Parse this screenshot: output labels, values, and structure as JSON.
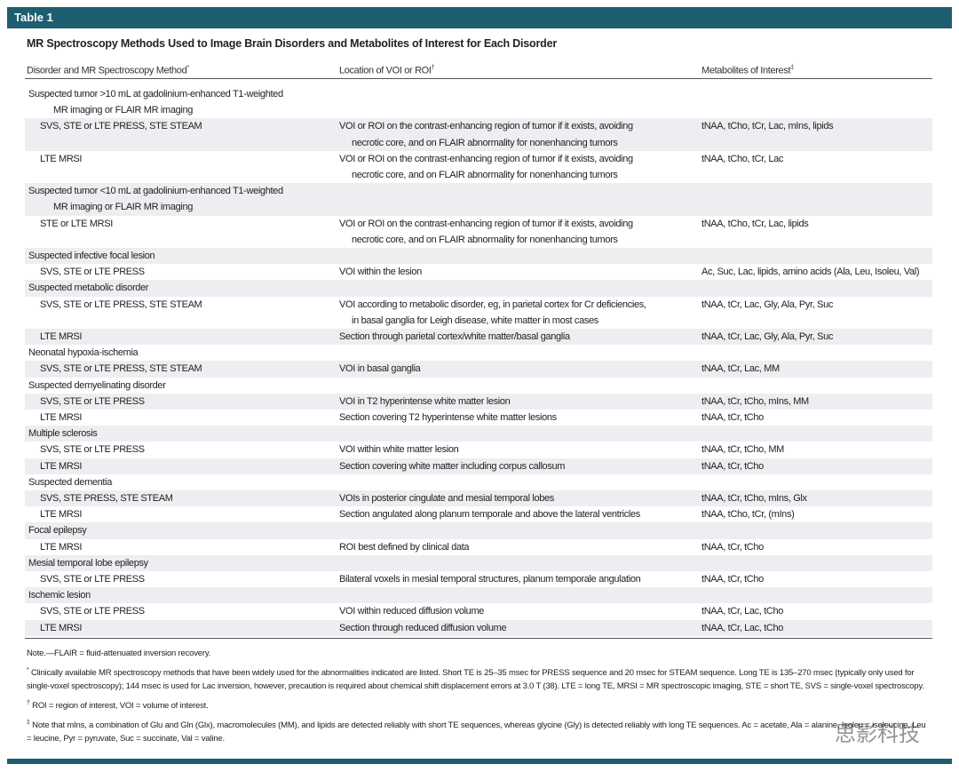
{
  "header": {
    "label": "Table 1",
    "title": "MR Spectroscopy Methods Used to Image Brain Disorders and Metabolites of Interest for Each Disorder"
  },
  "table": {
    "columns": [
      {
        "text": "Disorder and MR Spectroscopy Method",
        "mark": "*"
      },
      {
        "text": "Location of VOI or ROI",
        "mark": "†"
      },
      {
        "text": "Metabolites of Interest",
        "mark": "‡"
      }
    ],
    "rows": [
      {
        "group": [
          "Suspected tumor >10 mL at gadolinium-enhanced T1-weighted",
          "MR imaging or FLAIR MR imaging"
        ]
      },
      {
        "method": [
          "SVS, STE or LTE PRESS, STE STEAM"
        ],
        "location": [
          "VOI or ROI on the contrast-enhancing region of tumor if it exists, avoiding",
          "necrotic core, and on FLAIR abnormality for nonenhancing tumors"
        ],
        "metabolites": [
          "tNAA, tCho, tCr, Lac, mIns, lipids"
        ]
      },
      {
        "method": [
          "LTE MRSI"
        ],
        "location": [
          "VOI or ROI on the contrast-enhancing region of tumor if it exists, avoiding",
          "necrotic core, and on FLAIR abnormality for nonenhancing tumors"
        ],
        "metabolites": [
          "tNAA, tCho, tCr, Lac"
        ]
      },
      {
        "group": [
          "Suspected tumor <10 mL at gadolinium-enhanced T1-weighted",
          "MR imaging or FLAIR MR imaging"
        ]
      },
      {
        "method": [
          "STE or LTE MRSI"
        ],
        "location": [
          "VOI or ROI on the contrast-enhancing region of tumor if it exists, avoiding",
          "necrotic core, and on FLAIR abnormality for nonenhancing tumors"
        ],
        "metabolites": [
          "tNAA, tCho, tCr, Lac, lipids"
        ]
      },
      {
        "group": [
          "Suspected infective focal lesion"
        ]
      },
      {
        "method": [
          "SVS, STE or LTE PRESS"
        ],
        "location": [
          "VOI within the lesion"
        ],
        "metabolites": [
          "Ac, Suc, Lac, lipids, amino acids (Ala, Leu, Isoleu, Val)"
        ]
      },
      {
        "group": [
          "Suspected metabolic disorder"
        ]
      },
      {
        "method": [
          "SVS, STE or LTE PRESS, STE STEAM"
        ],
        "location": [
          "VOI according to metabolic disorder, eg, in parietal cortex for Cr deficiencies,",
          "in basal ganglia for Leigh disease, white matter in most cases"
        ],
        "metabolites": [
          "tNAA, tCr, Lac, Gly, Ala, Pyr, Suc"
        ]
      },
      {
        "method": [
          "LTE MRSI"
        ],
        "location": [
          "Section through parietal cortex/white matter/basal ganglia"
        ],
        "metabolites": [
          "tNAA, tCr, Lac, Gly, Ala, Pyr, Suc"
        ]
      },
      {
        "group": [
          "Neonatal hypoxia-ischemia"
        ]
      },
      {
        "method": [
          "SVS, STE or LTE PRESS, STE STEAM"
        ],
        "location": [
          "VOI in basal ganglia"
        ],
        "metabolites": [
          "tNAA, tCr, Lac, MM"
        ]
      },
      {
        "group": [
          "Suspected demyelinating disorder"
        ]
      },
      {
        "method": [
          "SVS, STE or LTE PRESS"
        ],
        "location": [
          "VOI in T2 hyperintense white matter lesion"
        ],
        "metabolites": [
          "tNAA, tCr, tCho, mIns, MM"
        ]
      },
      {
        "method": [
          "LTE MRSI"
        ],
        "location": [
          "Section covering T2 hyperintense white matter lesions"
        ],
        "metabolites": [
          "tNAA, tCr, tCho"
        ]
      },
      {
        "group": [
          "Multiple sclerosis"
        ]
      },
      {
        "method": [
          "SVS, STE or LTE PRESS"
        ],
        "location": [
          "VOI within white matter lesion"
        ],
        "metabolites": [
          "tNAA, tCr, tCho, MM"
        ]
      },
      {
        "method": [
          "LTE MRSI"
        ],
        "location": [
          "Section covering white matter including corpus callosum"
        ],
        "metabolites": [
          "tNAA, tCr, tCho"
        ]
      },
      {
        "group": [
          "Suspected dementia"
        ]
      },
      {
        "method": [
          "SVS, STE PRESS, STE STEAM"
        ],
        "location": [
          "VOIs in posterior cingulate and mesial temporal lobes"
        ],
        "metabolites": [
          "tNAA, tCr, tCho, mIns, Glx"
        ]
      },
      {
        "method": [
          "LTE MRSI"
        ],
        "location": [
          "Section angulated along planum temporale and above the lateral ventricles"
        ],
        "metabolites": [
          "tNAA, tCho, tCr, (mIns)"
        ]
      },
      {
        "group": [
          "Focal epilepsy"
        ]
      },
      {
        "method": [
          "LTE MRSI"
        ],
        "location": [
          "ROI best defined by clinical data"
        ],
        "metabolites": [
          "tNAA, tCr, tCho"
        ]
      },
      {
        "group": [
          "Mesial temporal lobe epilepsy"
        ]
      },
      {
        "method": [
          "SVS, STE or LTE PRESS"
        ],
        "location": [
          "Bilateral voxels in mesial temporal structures, planum temporale angulation"
        ],
        "metabolites": [
          "tNAA, tCr, tCho"
        ]
      },
      {
        "group": [
          "Ischemic lesion"
        ]
      },
      {
        "method": [
          "SVS, STE or LTE PRESS"
        ],
        "location": [
          "VOI within reduced diffusion volume"
        ],
        "metabolites": [
          "tNAA, tCr, Lac, tCho"
        ]
      },
      {
        "method": [
          "LTE MRSI"
        ],
        "location": [
          "Section through reduced diffusion volume"
        ],
        "metabolites": [
          "tNAA, tCr, Lac, tCho"
        ]
      }
    ]
  },
  "notes": [
    {
      "mark": "",
      "text": "Note.—FLAIR = fluid-attenuated inversion recovery."
    },
    {
      "mark": "*",
      "text": "Clinically available MR spectroscopy methods that have been widely used for the abnormalities indicated are listed. Short TE is 25–35 msec for PRESS sequence and 20 msec for STEAM sequence. Long TE is 135–270 msec (typically only used for single-voxel spectroscopy); 144 msec is used for Lac inversion, however, precaution is required about chemical shift displacement errors at 3.0 T (38). LTE = long TE, MRSI = MR spectroscopic imaging, STE = short TE, SVS = single-voxel spectroscopy."
    },
    {
      "mark": "†",
      "text": "ROI = region of interest, VOI = volume of interest."
    },
    {
      "mark": "‡",
      "text": "Note that mIns, a combination of Glu and Gln (Glx), macromolecules (MM), and lipids are detected reliably with short TE sequences, whereas glycine (Gly) is detected reliably with long TE sequences. Ac = acetate, Ala = alanine, Isoleu = isoleucine, Leu = leucine, Pyr = pyruvate, Suc = succinate, Val = valine."
    }
  ],
  "watermark": "思影科技"
}
